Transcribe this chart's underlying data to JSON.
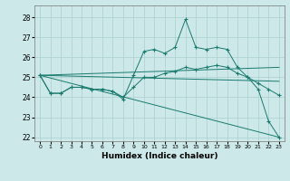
{
  "xlabel": "Humidex (Indice chaleur)",
  "bg_color": "#cce8e8",
  "grid_color": "#aacfcf",
  "line_color": "#1a7a6e",
  "xlim": [
    -0.5,
    23.5
  ],
  "ylim": [
    21.8,
    28.6
  ],
  "yticks": [
    22,
    23,
    24,
    25,
    26,
    27,
    28
  ],
  "xticks": [
    0,
    1,
    2,
    3,
    4,
    5,
    6,
    7,
    8,
    9,
    10,
    11,
    12,
    13,
    14,
    15,
    16,
    17,
    18,
    19,
    20,
    21,
    22,
    23
  ],
  "line1_x": [
    0,
    1,
    2,
    3,
    4,
    5,
    6,
    7,
    8,
    9,
    10,
    11,
    12,
    13,
    14,
    15,
    16,
    17,
    18,
    19,
    20,
    21,
    22,
    23
  ],
  "line1_y": [
    25.1,
    24.2,
    24.2,
    24.5,
    24.5,
    24.4,
    24.4,
    24.3,
    23.9,
    25.1,
    26.3,
    26.4,
    26.2,
    26.5,
    27.9,
    26.5,
    26.4,
    26.5,
    26.4,
    25.5,
    25.0,
    24.4,
    22.8,
    22.0
  ],
  "line2_x": [
    0,
    1,
    2,
    3,
    4,
    5,
    6,
    7,
    8,
    9,
    10,
    11,
    12,
    13,
    14,
    15,
    16,
    17,
    18,
    19,
    20,
    21,
    22,
    23
  ],
  "line2_y": [
    25.1,
    24.2,
    24.2,
    24.5,
    24.5,
    24.4,
    24.4,
    24.3,
    24.0,
    24.5,
    25.0,
    25.0,
    25.2,
    25.3,
    25.5,
    25.4,
    25.5,
    25.6,
    25.5,
    25.2,
    25.0,
    24.7,
    24.4,
    24.1
  ],
  "line3_x": [
    0,
    23
  ],
  "line3_y": [
    25.1,
    22.0
  ],
  "line4_x": [
    0,
    23
  ],
  "line4_y": [
    25.1,
    25.5
  ],
  "line5_x": [
    0,
    23
  ],
  "line5_y": [
    25.1,
    24.8
  ]
}
